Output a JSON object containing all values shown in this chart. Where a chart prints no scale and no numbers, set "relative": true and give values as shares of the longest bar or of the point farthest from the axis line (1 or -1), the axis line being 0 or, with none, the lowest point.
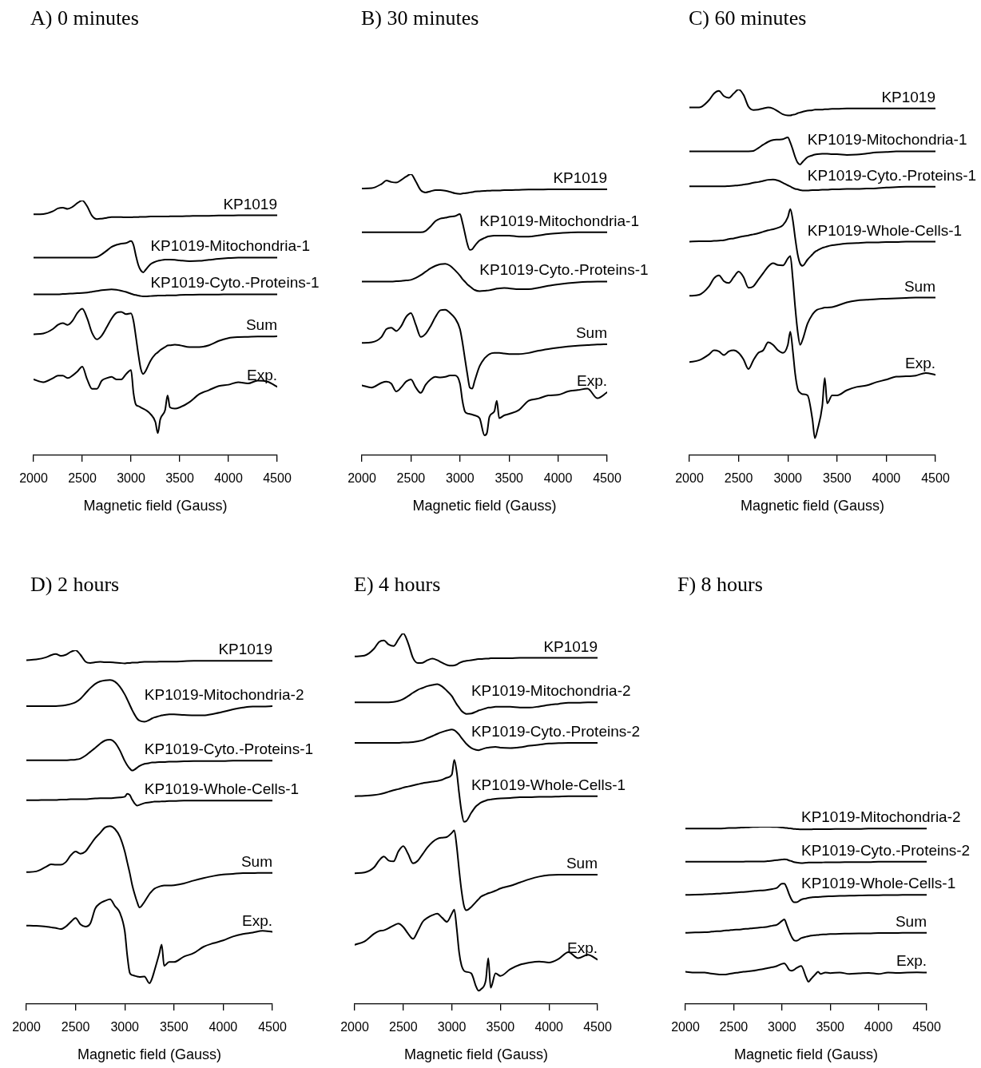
{
  "chart_data": [
    {
      "type": "line",
      "title": "A) 0 minutes",
      "xlabel": "Magnetic field (Gauss)",
      "relative": true,
      "xlim": [
        2000,
        4500
      ],
      "xticks": [
        2000,
        2500,
        3000,
        3500,
        4000,
        4500
      ],
      "x": [
        2000,
        2100,
        2200,
        2250,
        2300,
        2350,
        2400,
        2450,
        2500,
        2550,
        2600,
        2650,
        2700,
        2750,
        2800,
        2850,
        2900,
        2950,
        3000,
        3025,
        3050,
        3075,
        3100,
        3125,
        3150,
        3200,
        3250,
        3275,
        3300,
        3350,
        3375,
        3400,
        3450,
        3500,
        3600,
        3700,
        3800,
        3900,
        4000,
        4100,
        4200,
        4300,
        4400,
        4500
      ],
      "series": [
        {
          "name": "KP1019",
          "color": "#000000",
          "values": [
            0.946,
            0.947,
            0.958,
            0.969,
            0.972,
            0.967,
            0.975,
            0.99,
            1.0,
            0.977,
            0.94,
            0.927,
            0.929,
            0.932,
            0.935,
            0.935,
            0.935,
            0.934,
            0.934,
            0.935,
            0.935,
            0.935,
            0.936,
            0.936,
            0.936,
            0.937,
            0.937,
            0.937,
            0.937,
            0.937,
            0.937,
            0.938,
            0.938,
            0.938,
            0.939,
            0.94,
            0.94,
            0.941,
            0.941,
            0.942,
            0.942,
            0.942,
            0.942,
            0.942
          ]
        },
        {
          "name": "KP1019-Mitochondria-1",
          "color": "#000000",
          "values": [
            0.776,
            0.776,
            0.776,
            0.776,
            0.776,
            0.776,
            0.776,
            0.776,
            0.776,
            0.776,
            0.776,
            0.778,
            0.789,
            0.803,
            0.818,
            0.826,
            0.831,
            0.833,
            0.841,
            0.826,
            0.784,
            0.747,
            0.726,
            0.718,
            0.728,
            0.75,
            0.76,
            0.763,
            0.765,
            0.768,
            0.768,
            0.768,
            0.767,
            0.765,
            0.762,
            0.763,
            0.767,
            0.771,
            0.774,
            0.776,
            0.776,
            0.776,
            0.776,
            0.776
          ]
        },
        {
          "name": "KP1019-Cyto.-Proteins-1",
          "color": "#000000",
          "values": [
            0.632,
            0.632,
            0.632,
            0.632,
            0.633,
            0.634,
            0.635,
            0.636,
            0.637,
            0.639,
            0.642,
            0.645,
            0.648,
            0.65,
            0.651,
            0.65,
            0.646,
            0.641,
            0.634,
            0.631,
            0.629,
            0.627,
            0.625,
            0.624,
            0.624,
            0.625,
            0.626,
            0.627,
            0.627,
            0.627,
            0.628,
            0.628,
            0.628,
            0.629,
            0.63,
            0.631,
            0.631,
            0.631,
            0.632,
            0.632,
            0.632,
            0.632,
            0.632,
            0.632
          ]
        },
        {
          "name": "Sum",
          "color": "#000000",
          "values": [
            0.475,
            0.478,
            0.496,
            0.512,
            0.519,
            0.512,
            0.528,
            0.559,
            0.575,
            0.538,
            0.481,
            0.455,
            0.47,
            0.502,
            0.536,
            0.559,
            0.563,
            0.554,
            0.557,
            0.528,
            0.465,
            0.397,
            0.34,
            0.319,
            0.331,
            0.371,
            0.397,
            0.404,
            0.413,
            0.425,
            0.431,
            0.432,
            0.434,
            0.432,
            0.425,
            0.425,
            0.432,
            0.449,
            0.46,
            0.464,
            0.465,
            0.466,
            0.466,
            0.467
          ]
        },
        {
          "name": "Exp.",
          "color": "#000000",
          "values": [
            0.298,
            0.287,
            0.303,
            0.313,
            0.313,
            0.303,
            0.313,
            0.329,
            0.348,
            0.298,
            0.261,
            0.261,
            0.293,
            0.303,
            0.308,
            0.298,
            0.298,
            0.319,
            0.335,
            0.246,
            0.199,
            0.193,
            0.188,
            0.183,
            0.178,
            0.162,
            0.131,
            0.087,
            0.141,
            0.178,
            0.235,
            0.188,
            0.183,
            0.188,
            0.209,
            0.24,
            0.256,
            0.272,
            0.277,
            0.287,
            0.282,
            0.293,
            0.289,
            0.269
          ]
        }
      ]
    },
    {
      "type": "line",
      "title": "B) 30 minutes",
      "xlabel": "Magnetic field (Gauss)",
      "relative": true,
      "xlim": [
        2000,
        4500
      ],
      "xticks": [
        2000,
        2500,
        3000,
        3500,
        4000,
        4500
      ],
      "x": [
        2000,
        2100,
        2200,
        2250,
        2300,
        2350,
        2400,
        2450,
        2500,
        2550,
        2600,
        2650,
        2700,
        2750,
        2800,
        2850,
        2900,
        2950,
        3000,
        3025,
        3050,
        3075,
        3100,
        3125,
        3150,
        3200,
        3250,
        3275,
        3300,
        3350,
        3375,
        3400,
        3450,
        3500,
        3600,
        3700,
        3800,
        3900,
        4000,
        4100,
        4200,
        4300,
        4400,
        4500
      ],
      "series": [
        {
          "name": "KP1019",
          "color": "#000000",
          "values": [
            0.949,
            0.95,
            0.965,
            0.977,
            0.972,
            0.97,
            0.979,
            0.991,
            1.0,
            0.974,
            0.943,
            0.935,
            0.939,
            0.943,
            0.943,
            0.941,
            0.937,
            0.932,
            0.93,
            0.931,
            0.932,
            0.933,
            0.935,
            0.936,
            0.938,
            0.939,
            0.94,
            0.941,
            0.941,
            0.942,
            0.942,
            0.942,
            0.943,
            0.943,
            0.944,
            0.945,
            0.945,
            0.946,
            0.946,
            0.946,
            0.946,
            0.946,
            0.946,
            0.946
          ]
        },
        {
          "name": "KP1019-Mitochondria-1",
          "color": "#000000",
          "values": [
            0.793,
            0.793,
            0.793,
            0.793,
            0.793,
            0.793,
            0.793,
            0.793,
            0.793,
            0.793,
            0.793,
            0.798,
            0.814,
            0.833,
            0.842,
            0.845,
            0.849,
            0.851,
            0.858,
            0.828,
            0.79,
            0.752,
            0.731,
            0.733,
            0.745,
            0.764,
            0.773,
            0.777,
            0.779,
            0.781,
            0.781,
            0.781,
            0.781,
            0.781,
            0.778,
            0.778,
            0.782,
            0.787,
            0.79,
            0.792,
            0.793,
            0.793,
            0.793,
            0.793
          ]
        },
        {
          "name": "KP1019-Cyto.-Proteins-1",
          "color": "#000000",
          "values": [
            0.618,
            0.618,
            0.618,
            0.618,
            0.618,
            0.619,
            0.62,
            0.622,
            0.624,
            0.631,
            0.641,
            0.653,
            0.665,
            0.674,
            0.68,
            0.681,
            0.674,
            0.658,
            0.639,
            0.627,
            0.618,
            0.608,
            0.601,
            0.594,
            0.588,
            0.584,
            0.585,
            0.586,
            0.587,
            0.591,
            0.593,
            0.594,
            0.595,
            0.594,
            0.591,
            0.591,
            0.596,
            0.603,
            0.608,
            0.612,
            0.615,
            0.617,
            0.618,
            0.618
          ]
        },
        {
          "name": "Sum",
          "color": "#000000",
          "values": [
            0.4,
            0.402,
            0.421,
            0.449,
            0.454,
            0.442,
            0.459,
            0.492,
            0.506,
            0.464,
            0.421,
            0.432,
            0.459,
            0.492,
            0.516,
            0.518,
            0.506,
            0.487,
            0.449,
            0.402,
            0.345,
            0.289,
            0.241,
            0.237,
            0.265,
            0.317,
            0.345,
            0.353,
            0.36,
            0.364,
            0.364,
            0.364,
            0.362,
            0.36,
            0.36,
            0.364,
            0.372,
            0.378,
            0.383,
            0.387,
            0.39,
            0.392,
            0.394,
            0.395
          ]
        },
        {
          "name": "Exp.",
          "color": "#000000",
          "values": [
            0.249,
            0.241,
            0.258,
            0.262,
            0.255,
            0.227,
            0.241,
            0.262,
            0.27,
            0.241,
            0.222,
            0.251,
            0.27,
            0.279,
            0.277,
            0.279,
            0.284,
            0.284,
            0.255,
            0.194,
            0.156,
            0.149,
            0.147,
            0.145,
            0.142,
            0.132,
            0.071,
            0.08,
            0.137,
            0.156,
            0.194,
            0.132,
            0.142,
            0.147,
            0.161,
            0.194,
            0.202,
            0.213,
            0.215,
            0.227,
            0.232,
            0.237,
            0.203,
            0.224
          ]
        }
      ]
    },
    {
      "type": "line",
      "title": "C) 60 minutes",
      "xlabel": "Magnetic field (Gauss)",
      "relative": true,
      "xlim": [
        2000,
        4500
      ],
      "xticks": [
        2000,
        2500,
        3000,
        3500,
        4000,
        4500
      ],
      "x": [
        2000,
        2100,
        2200,
        2250,
        2300,
        2350,
        2400,
        2450,
        2500,
        2550,
        2600,
        2650,
        2700,
        2750,
        2800,
        2850,
        2900,
        2950,
        3000,
        3025,
        3050,
        3075,
        3100,
        3125,
        3150,
        3200,
        3250,
        3275,
        3300,
        3350,
        3375,
        3400,
        3450,
        3500,
        3600,
        3700,
        3800,
        3900,
        4000,
        4100,
        4200,
        4300,
        4400,
        4500
      ],
      "series": [
        {
          "name": "KP1019",
          "color": "#000000",
          "values": [
            0.951,
            0.951,
            0.971,
            0.989,
            0.996,
            0.982,
            0.977,
            0.989,
            1.0,
            0.985,
            0.953,
            0.944,
            0.945,
            0.948,
            0.951,
            0.948,
            0.94,
            0.932,
            0.929,
            0.929,
            0.931,
            0.932,
            0.935,
            0.937,
            0.939,
            0.942,
            0.943,
            0.945,
            0.945,
            0.945,
            0.946,
            0.946,
            0.947,
            0.947,
            0.948,
            0.948,
            0.948,
            0.948,
            0.948,
            0.948,
            0.948,
            0.948,
            0.948,
            0.948
          ]
        },
        {
          "name": "KP1019-Mitochondria-1",
          "color": "#000000",
          "values": [
            0.831,
            0.831,
            0.831,
            0.831,
            0.831,
            0.831,
            0.831,
            0.831,
            0.831,
            0.831,
            0.831,
            0.832,
            0.84,
            0.849,
            0.857,
            0.862,
            0.863,
            0.864,
            0.869,
            0.855,
            0.836,
            0.815,
            0.8,
            0.795,
            0.802,
            0.815,
            0.82,
            0.822,
            0.823,
            0.824,
            0.824,
            0.824,
            0.823,
            0.823,
            0.821,
            0.822,
            0.825,
            0.828,
            0.829,
            0.831,
            0.831,
            0.831,
            0.831,
            0.831
          ]
        },
        {
          "name": "KP1019-Cyto.-Proteins-1",
          "color": "#000000",
          "values": [
            0.735,
            0.735,
            0.735,
            0.735,
            0.735,
            0.735,
            0.736,
            0.737,
            0.738,
            0.74,
            0.742,
            0.745,
            0.747,
            0.75,
            0.753,
            0.754,
            0.751,
            0.745,
            0.738,
            0.735,
            0.731,
            0.728,
            0.727,
            0.725,
            0.724,
            0.724,
            0.725,
            0.725,
            0.725,
            0.726,
            0.726,
            0.726,
            0.727,
            0.727,
            0.728,
            0.728,
            0.729,
            0.73,
            0.732,
            0.733,
            0.734,
            0.734,
            0.734,
            0.734
          ]
        },
        {
          "name": "KP1019-Whole-Cells-1",
          "color": "#000000",
          "values": [
            0.584,
            0.585,
            0.585,
            0.586,
            0.587,
            0.588,
            0.591,
            0.593,
            0.596,
            0.599,
            0.601,
            0.604,
            0.607,
            0.611,
            0.615,
            0.618,
            0.622,
            0.629,
            0.651,
            0.673,
            0.644,
            0.593,
            0.549,
            0.524,
            0.518,
            0.535,
            0.549,
            0.556,
            0.56,
            0.567,
            0.569,
            0.571,
            0.574,
            0.576,
            0.579,
            0.58,
            0.582,
            0.582,
            0.583,
            0.583,
            0.584,
            0.584,
            0.584,
            0.584
          ]
        },
        {
          "name": "Sum",
          "color": "#000000",
          "values": [
            0.436,
            0.439,
            0.462,
            0.484,
            0.492,
            0.476,
            0.471,
            0.487,
            0.502,
            0.487,
            0.458,
            0.462,
            0.48,
            0.498,
            0.516,
            0.525,
            0.52,
            0.519,
            0.538,
            0.545,
            0.484,
            0.404,
            0.338,
            0.302,
            0.316,
            0.36,
            0.385,
            0.393,
            0.398,
            0.402,
            0.404,
            0.404,
            0.405,
            0.409,
            0.418,
            0.423,
            0.425,
            0.427,
            0.428,
            0.429,
            0.43,
            0.431,
            0.431,
            0.431
          ]
        },
        {
          "name": "Exp.",
          "color": "#000000",
          "values": [
            0.255,
            0.26,
            0.276,
            0.287,
            0.284,
            0.274,
            0.284,
            0.287,
            0.28,
            0.262,
            0.236,
            0.26,
            0.28,
            0.287,
            0.309,
            0.302,
            0.287,
            0.28,
            0.302,
            0.338,
            0.287,
            0.222,
            0.182,
            0.171,
            0.167,
            0.164,
            0.098,
            0.047,
            0.069,
            0.135,
            0.211,
            0.142,
            0.164,
            0.164,
            0.178,
            0.187,
            0.191,
            0.2,
            0.207,
            0.215,
            0.216,
            0.218,
            0.225,
            0.22
          ]
        }
      ]
    },
    {
      "type": "line",
      "title": "D) 2 hours",
      "xlabel": "Magnetic field (Gauss)",
      "relative": true,
      "xlim": [
        2000,
        4500
      ],
      "xticks": [
        2000,
        2500,
        3000,
        3500,
        4000,
        4500
      ],
      "x": [
        2000,
        2100,
        2200,
        2250,
        2300,
        2350,
        2400,
        2450,
        2500,
        2550,
        2600,
        2650,
        2700,
        2750,
        2800,
        2850,
        2900,
        2950,
        3000,
        3025,
        3050,
        3075,
        3100,
        3125,
        3150,
        3200,
        3250,
        3275,
        3300,
        3350,
        3375,
        3400,
        3450,
        3500,
        3600,
        3700,
        3800,
        3900,
        4000,
        4100,
        4200,
        4300,
        4400,
        4500
      ],
      "series": [
        {
          "name": "KP1019",
          "color": "#000000",
          "values": [
            0.972,
            0.974,
            0.98,
            0.986,
            0.989,
            0.984,
            0.987,
            0.995,
            1.0,
            0.987,
            0.968,
            0.964,
            0.966,
            0.967,
            0.966,
            0.966,
            0.965,
            0.964,
            0.963,
            0.964,
            0.964,
            0.965,
            0.965,
            0.965,
            0.966,
            0.967,
            0.967,
            0.967,
            0.967,
            0.968,
            0.968,
            0.968,
            0.968,
            0.968,
            0.969,
            0.97,
            0.97,
            0.97,
            0.97,
            0.97,
            0.97,
            0.97,
            0.97,
            0.97
          ]
        },
        {
          "name": "KP1019-Mitochondria-2",
          "color": "#000000",
          "values": [
            0.842,
            0.842,
            0.842,
            0.842,
            0.842,
            0.843,
            0.845,
            0.848,
            0.853,
            0.863,
            0.878,
            0.893,
            0.905,
            0.912,
            0.915,
            0.916,
            0.911,
            0.897,
            0.875,
            0.861,
            0.846,
            0.831,
            0.818,
            0.807,
            0.801,
            0.798,
            0.803,
            0.807,
            0.81,
            0.814,
            0.816,
            0.817,
            0.819,
            0.819,
            0.817,
            0.816,
            0.816,
            0.82,
            0.826,
            0.833,
            0.838,
            0.841,
            0.841,
            0.842
          ]
        },
        {
          "name": "KP1019-Cyto.-Proteins-1",
          "color": "#000000",
          "values": [
            0.689,
            0.689,
            0.689,
            0.689,
            0.689,
            0.689,
            0.689,
            0.69,
            0.691,
            0.694,
            0.702,
            0.713,
            0.724,
            0.736,
            0.745,
            0.747,
            0.739,
            0.717,
            0.687,
            0.675,
            0.666,
            0.66,
            0.663,
            0.668,
            0.673,
            0.679,
            0.681,
            0.683,
            0.683,
            0.684,
            0.684,
            0.684,
            0.685,
            0.685,
            0.686,
            0.687,
            0.687,
            0.687,
            0.687,
            0.688,
            0.688,
            0.688,
            0.688,
            0.688
          ]
        },
        {
          "name": "KP1019-Whole-Cells-1",
          "color": "#000000",
          "values": [
            0.576,
            0.576,
            0.577,
            0.577,
            0.577,
            0.578,
            0.578,
            0.579,
            0.579,
            0.579,
            0.579,
            0.58,
            0.581,
            0.582,
            0.582,
            0.582,
            0.583,
            0.584,
            0.586,
            0.594,
            0.591,
            0.578,
            0.567,
            0.561,
            0.563,
            0.568,
            0.57,
            0.571,
            0.572,
            0.572,
            0.573,
            0.573,
            0.574,
            0.574,
            0.575,
            0.575,
            0.575,
            0.575,
            0.575,
            0.575,
            0.575,
            0.575,
            0.575,
            0.575
          ]
        },
        {
          "name": "Sum",
          "color": "#000000",
          "values": [
            0.373,
            0.375,
            0.388,
            0.395,
            0.394,
            0.394,
            0.401,
            0.42,
            0.431,
            0.425,
            0.431,
            0.45,
            0.469,
            0.484,
            0.499,
            0.503,
            0.495,
            0.473,
            0.431,
            0.401,
            0.371,
            0.337,
            0.311,
            0.289,
            0.273,
            0.289,
            0.311,
            0.319,
            0.326,
            0.332,
            0.334,
            0.335,
            0.335,
            0.336,
            0.341,
            0.349,
            0.356,
            0.362,
            0.366,
            0.368,
            0.37,
            0.37,
            0.371,
            0.371
          ]
        },
        {
          "name": "Exp.",
          "color": "#000000",
          "values": [
            0.222,
            0.221,
            0.219,
            0.217,
            0.215,
            0.212,
            0.219,
            0.232,
            0.243,
            0.225,
            0.219,
            0.228,
            0.27,
            0.285,
            0.292,
            0.296,
            0.277,
            0.258,
            0.206,
            0.138,
            0.089,
            0.082,
            0.08,
            0.078,
            0.077,
            0.078,
            0.059,
            0.071,
            0.093,
            0.142,
            0.168,
            0.108,
            0.119,
            0.119,
            0.134,
            0.144,
            0.162,
            0.172,
            0.18,
            0.191,
            0.198,
            0.202,
            0.207,
            0.204
          ]
        }
      ]
    },
    {
      "type": "line",
      "title": "E) 4 hours",
      "xlabel": "Magnetic field (Gauss)",
      "relative": true,
      "xlim": [
        2000,
        4500
      ],
      "xticks": [
        2000,
        2500,
        3000,
        3500,
        4000,
        4500
      ],
      "x": [
        2000,
        2100,
        2200,
        2250,
        2300,
        2350,
        2400,
        2450,
        2500,
        2550,
        2600,
        2650,
        2700,
        2750,
        2800,
        2850,
        2900,
        2950,
        3000,
        3025,
        3050,
        3075,
        3100,
        3125,
        3150,
        3200,
        3250,
        3275,
        3300,
        3350,
        3375,
        3400,
        3450,
        3500,
        3600,
        3700,
        3800,
        3900,
        4000,
        4100,
        4200,
        4300,
        4400,
        4500
      ],
      "series": [
        {
          "name": "KP1019",
          "color": "#000000",
          "values": [
            0.938,
            0.94,
            0.959,
            0.977,
            0.981,
            0.97,
            0.966,
            0.984,
            1.0,
            0.974,
            0.934,
            0.92,
            0.921,
            0.928,
            0.932,
            0.928,
            0.921,
            0.915,
            0.913,
            0.914,
            0.916,
            0.92,
            0.923,
            0.925,
            0.926,
            0.928,
            0.93,
            0.931,
            0.931,
            0.932,
            0.932,
            0.933,
            0.933,
            0.933,
            0.933,
            0.934,
            0.934,
            0.934,
            0.934,
            0.934,
            0.934,
            0.934,
            0.934,
            0.934
          ]
        },
        {
          "name": "KP1019-Mitochondria-2",
          "color": "#000000",
          "values": [
            0.814,
            0.814,
            0.814,
            0.814,
            0.814,
            0.814,
            0.815,
            0.818,
            0.823,
            0.831,
            0.84,
            0.848,
            0.853,
            0.858,
            0.861,
            0.863,
            0.857,
            0.845,
            0.831,
            0.82,
            0.809,
            0.8,
            0.791,
            0.786,
            0.783,
            0.784,
            0.789,
            0.792,
            0.794,
            0.798,
            0.8,
            0.8,
            0.802,
            0.802,
            0.802,
            0.8,
            0.8,
            0.803,
            0.807,
            0.81,
            0.813,
            0.813,
            0.814,
            0.814
          ]
        },
        {
          "name": "KP1019-Cyto.-Proteins-2",
          "color": "#000000",
          "values": [
            0.705,
            0.705,
            0.705,
            0.705,
            0.705,
            0.705,
            0.705,
            0.705,
            0.706,
            0.706,
            0.707,
            0.709,
            0.712,
            0.718,
            0.723,
            0.729,
            0.734,
            0.738,
            0.741,
            0.739,
            0.734,
            0.727,
            0.718,
            0.71,
            0.702,
            0.691,
            0.686,
            0.685,
            0.687,
            0.691,
            0.692,
            0.693,
            0.694,
            0.692,
            0.691,
            0.693,
            0.697,
            0.7,
            0.703,
            0.704,
            0.705,
            0.705,
            0.705,
            0.705
          ]
        },
        {
          "name": "KP1019-Whole-Cells-1",
          "color": "#000000",
          "values": [
            0.561,
            0.562,
            0.564,
            0.566,
            0.569,
            0.573,
            0.577,
            0.58,
            0.584,
            0.587,
            0.59,
            0.593,
            0.596,
            0.598,
            0.6,
            0.602,
            0.605,
            0.611,
            0.619,
            0.659,
            0.627,
            0.569,
            0.519,
            0.492,
            0.494,
            0.516,
            0.534,
            0.539,
            0.544,
            0.549,
            0.551,
            0.552,
            0.554,
            0.555,
            0.556,
            0.558,
            0.558,
            0.559,
            0.559,
            0.56,
            0.561,
            0.561,
            0.561,
            0.561
          ]
        },
        {
          "name": "Sum",
          "color": "#000000",
          "values": [
            0.353,
            0.355,
            0.369,
            0.387,
            0.398,
            0.387,
            0.385,
            0.412,
            0.426,
            0.405,
            0.38,
            0.387,
            0.405,
            0.423,
            0.437,
            0.446,
            0.449,
            0.451,
            0.462,
            0.469,
            0.426,
            0.362,
            0.305,
            0.265,
            0.253,
            0.262,
            0.276,
            0.283,
            0.29,
            0.296,
            0.299,
            0.301,
            0.306,
            0.312,
            0.319,
            0.328,
            0.337,
            0.344,
            0.348,
            0.349,
            0.349,
            0.349,
            0.349,
            0.349
          ]
        },
        {
          "name": "Exp.",
          "color": "#000000",
          "values": [
            0.16,
            0.169,
            0.19,
            0.197,
            0.199,
            0.205,
            0.212,
            0.217,
            0.208,
            0.19,
            0.176,
            0.197,
            0.222,
            0.233,
            0.24,
            0.244,
            0.233,
            0.222,
            0.244,
            0.255,
            0.205,
            0.14,
            0.104,
            0.09,
            0.087,
            0.083,
            0.047,
            0.036,
            0.04,
            0.065,
            0.124,
            0.044,
            0.083,
            0.076,
            0.094,
            0.106,
            0.112,
            0.115,
            0.112,
            0.122,
            0.14,
            0.124,
            0.133,
            0.12
          ]
        }
      ]
    },
    {
      "type": "line",
      "title": "F) 8 hours",
      "xlabel": "Magnetic field (Gauss)",
      "relative": true,
      "xlim": [
        2000,
        4500
      ],
      "xticks": [
        2000,
        2500,
        3000,
        3500,
        4000,
        4500
      ],
      "x": [
        2000,
        2100,
        2200,
        2250,
        2300,
        2350,
        2400,
        2450,
        2500,
        2550,
        2600,
        2650,
        2700,
        2750,
        2800,
        2850,
        2900,
        2950,
        3000,
        3025,
        3050,
        3075,
        3100,
        3125,
        3150,
        3200,
        3250,
        3275,
        3300,
        3350,
        3375,
        3400,
        3450,
        3500,
        3600,
        3700,
        3800,
        3900,
        4000,
        4100,
        4200,
        4300,
        4400,
        4500
      ],
      "series": [
        {
          "name": "KP1019-Mitochondria-2",
          "color": "#000000",
          "values": [
            0.99,
            0.99,
            0.99,
            0.99,
            0.99,
            0.99,
            0.991,
            0.993,
            0.993,
            0.994,
            0.996,
            0.997,
            0.999,
            0.999,
            1.0,
            1.0,
            0.999,
            0.999,
            0.996,
            0.994,
            0.993,
            0.991,
            0.99,
            0.988,
            0.987,
            0.985,
            0.985,
            0.985,
            0.985,
            0.987,
            0.987,
            0.987,
            0.987,
            0.987,
            0.988,
            0.988,
            0.988,
            0.99,
            0.99,
            0.99,
            0.99,
            0.99,
            0.99,
            0.99
          ]
        },
        {
          "name": "KP1019-Cyto.-Proteins-2",
          "color": "#000000",
          "values": [
            0.803,
            0.803,
            0.803,
            0.803,
            0.803,
            0.803,
            0.803,
            0.803,
            0.803,
            0.803,
            0.803,
            0.804,
            0.804,
            0.804,
            0.804,
            0.806,
            0.809,
            0.812,
            0.815,
            0.816,
            0.815,
            0.81,
            0.806,
            0.801,
            0.798,
            0.795,
            0.797,
            0.798,
            0.798,
            0.798,
            0.798,
            0.798,
            0.8,
            0.8,
            0.8,
            0.801,
            0.801,
            0.801,
            0.803,
            0.803,
            0.803,
            0.803,
            0.803,
            0.803
          ]
        },
        {
          "name": "KP1019-Whole-Cells-1",
          "color": "#000000",
          "values": [
            0.616,
            0.617,
            0.619,
            0.62,
            0.622,
            0.623,
            0.625,
            0.626,
            0.628,
            0.631,
            0.632,
            0.634,
            0.637,
            0.64,
            0.641,
            0.644,
            0.649,
            0.656,
            0.679,
            0.679,
            0.656,
            0.619,
            0.589,
            0.574,
            0.574,
            0.589,
            0.596,
            0.599,
            0.601,
            0.604,
            0.604,
            0.605,
            0.607,
            0.608,
            0.61,
            0.611,
            0.613,
            0.614,
            0.614,
            0.615,
            0.615,
            0.616,
            0.616,
            0.616
          ]
        },
        {
          "name": "Sum",
          "color": "#000000",
          "values": [
            0.402,
            0.404,
            0.405,
            0.407,
            0.41,
            0.411,
            0.414,
            0.416,
            0.419,
            0.42,
            0.423,
            0.425,
            0.428,
            0.43,
            0.433,
            0.436,
            0.442,
            0.448,
            0.469,
            0.477,
            0.447,
            0.41,
            0.38,
            0.36,
            0.357,
            0.372,
            0.38,
            0.383,
            0.386,
            0.389,
            0.39,
            0.392,
            0.393,
            0.395,
            0.396,
            0.398,
            0.399,
            0.399,
            0.401,
            0.401,
            0.401,
            0.402,
            0.402,
            0.402
          ]
        },
        {
          "name": "Exp.",
          "color": "#000000",
          "values": [
            0.182,
            0.178,
            0.178,
            0.173,
            0.17,
            0.167,
            0.167,
            0.17,
            0.175,
            0.178,
            0.182,
            0.185,
            0.188,
            0.193,
            0.197,
            0.203,
            0.208,
            0.215,
            0.227,
            0.23,
            0.215,
            0.193,
            0.188,
            0.193,
            0.203,
            0.215,
            0.152,
            0.126,
            0.141,
            0.17,
            0.182,
            0.17,
            0.178,
            0.175,
            0.178,
            0.17,
            0.173,
            0.176,
            0.17,
            0.178,
            0.176,
            0.178,
            0.179,
            0.178
          ]
        }
      ]
    }
  ]
}
